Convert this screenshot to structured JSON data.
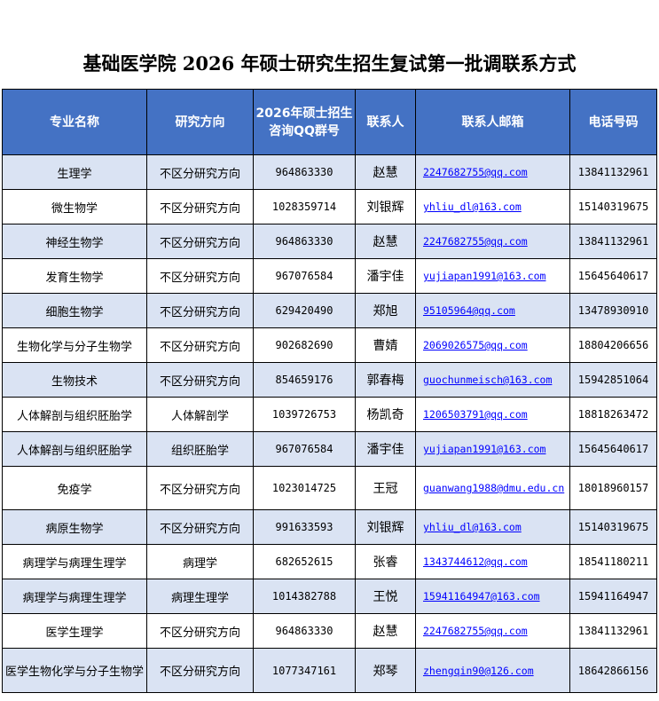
{
  "title": "基础医学院 2026 年硕士研究生招生复试第一批调联系方式",
  "colors": {
    "header_bg": "#4472c4",
    "row_alt_bg": "#dae3f3",
    "link": "#0000ff"
  },
  "columns": [
    "专业名称",
    "研究方向",
    "2026年硕士招生咨询QQ群号",
    "联系人",
    "联系人邮箱",
    "电话号码"
  ],
  "rows": [
    {
      "major": "生理学",
      "direction": "不区分研究方向",
      "qq": "964863330",
      "contact": "赵慧",
      "email": "2247682755@qq.com",
      "phone": "13841132961"
    },
    {
      "major": "微生物学",
      "direction": "不区分研究方向",
      "qq": "1028359714",
      "contact": "刘银辉",
      "email": "yhliu_dl@163.com",
      "phone": "15140319675"
    },
    {
      "major": "神经生物学",
      "direction": "不区分研究方向",
      "qq": "964863330",
      "contact": "赵慧",
      "email": "2247682755@qq.com",
      "phone": "13841132961"
    },
    {
      "major": "发育生物学",
      "direction": "不区分研究方向",
      "qq": "967076584",
      "contact": "潘宇佳",
      "email": "yujiapan1991@163.com",
      "phone": "15645640617"
    },
    {
      "major": "细胞生物学",
      "direction": "不区分研究方向",
      "qq": "629420490",
      "contact": "郑旭",
      "email": "95105964@qq.com",
      "phone": "13478930910"
    },
    {
      "major": "生物化学与分子生物学",
      "direction": "不区分研究方向",
      "qq": "902682690",
      "contact": "曹婧",
      "email": "2069026575@qq.com",
      "phone": "18804206656"
    },
    {
      "major": "生物技术",
      "direction": "不区分研究方向",
      "qq": "854659176",
      "contact": "郭春梅",
      "email": "guochunmeisch@163.com",
      "phone": "15942851064"
    },
    {
      "major": "人体解剖与组织胚胎学",
      "direction": "人体解剖学",
      "qq": "1039726753",
      "contact": "杨凯奇",
      "email": "1206503791@qq.com",
      "phone": "18818263472"
    },
    {
      "major": "人体解剖与组织胚胎学",
      "direction": "组织胚胎学",
      "qq": "967076584",
      "contact": "潘宇佳",
      "email": "yujiapan1991@163.com",
      "phone": "15645640617"
    },
    {
      "major": "免疫学",
      "direction": "不区分研究方向",
      "qq": "1023014725",
      "contact": "王冠",
      "email": "guanwang1988@dmu.edu.cn",
      "phone": "18018960157"
    },
    {
      "major": "病原生物学",
      "direction": "不区分研究方向",
      "qq": "991633593",
      "contact": "刘银辉",
      "email": "yhliu_dl@163.com",
      "phone": "15140319675"
    },
    {
      "major": "病理学与病理生理学",
      "direction": "病理学",
      "qq": "682652615",
      "contact": "张睿",
      "email": "1343744612@qq.com",
      "phone": "18541180211"
    },
    {
      "major": "病理学与病理生理学",
      "direction": "病理生理学",
      "qq": "1014382788",
      "contact": "王悦",
      "email": "15941164947@163.com",
      "phone": "15941164947"
    },
    {
      "major": "医学生理学",
      "direction": "不区分研究方向",
      "qq": "964863330",
      "contact": "赵慧",
      "email": "2247682755@qq.com",
      "phone": "13841132961"
    },
    {
      "major": "医学生物化学与分子生物学",
      "direction": "不区分研究方向",
      "qq": "1077347161",
      "contact": "郑琴",
      "email": "zhengqin90@126.com",
      "phone": "18642866156"
    }
  ]
}
